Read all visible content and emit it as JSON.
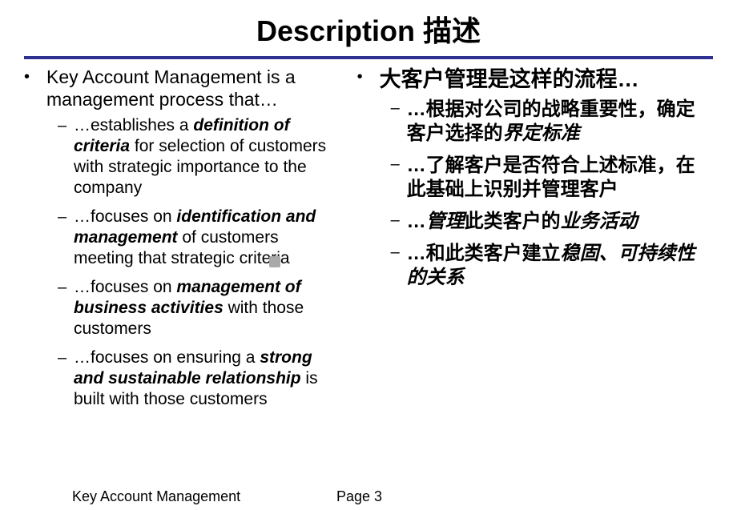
{
  "title": "Description 描述",
  "divider_color": "#2e3192",
  "left": {
    "main": "Key Account Management is a management process that…",
    "subs": [
      {
        "pre": "…establishes a ",
        "em": "definition of criteria",
        "post": " for selection of customers with strategic importance to the company"
      },
      {
        "pre": "…focuses on ",
        "em": "identification and management",
        "post": " of customers meeting that strategic criteria"
      },
      {
        "pre": "…focuses on ",
        "em": "management of business activities",
        "post": " with those customers"
      },
      {
        "pre": "…focuses on ensuring a ",
        "em": "strong and sustainable relationship",
        "post": " is built with those customers"
      }
    ]
  },
  "right": {
    "main": "大客户管理是这样的流程…",
    "subs": [
      {
        "pre": "…根据对公司的战略重要性，确定客户选择的",
        "em": "界定标准",
        "post": ""
      },
      {
        "pre": "…了解客户是否符合上述标准，在此基础上识别并管理客户",
        "em": "",
        "post": ""
      },
      {
        "pre": "…",
        "em": "管理",
        "mid": "此类客户的",
        "em2": "业务活动",
        "post": ""
      },
      {
        "pre": "…和此类客户建立",
        "em": "稳固、可持续性的关系",
        "post": ""
      }
    ]
  },
  "footer": {
    "title": "Key Account Management",
    "page": "Page 3"
  }
}
